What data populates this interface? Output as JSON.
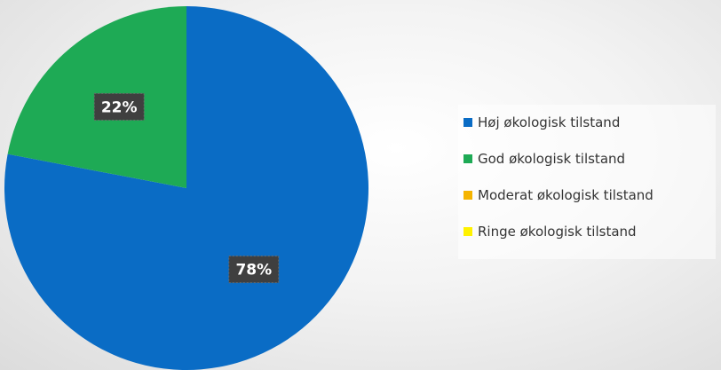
{
  "chart_data": {
    "type": "pie",
    "title": "",
    "categories": [
      "Høj økologisk tilstand",
      "God økologisk tilstand",
      "Moderat økologisk tilstand",
      "Ringe økologisk tilstand"
    ],
    "values": [
      78,
      22,
      0,
      0
    ],
    "data_labels": [
      "78%",
      "22%",
      "",
      ""
    ],
    "colors": [
      "#0A6CC5",
      "#1EAA55",
      "#F5B400",
      "#FFF200"
    ],
    "legend_position": "right",
    "start_angle_deg": 0,
    "direction": "clockwise"
  }
}
